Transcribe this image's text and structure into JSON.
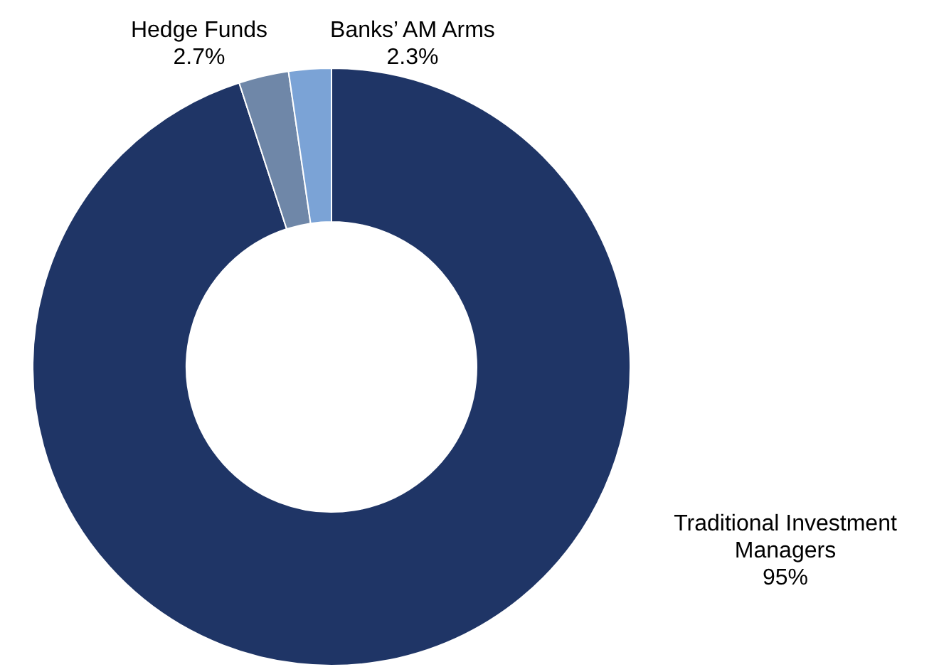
{
  "chart_data": {
    "type": "donut",
    "categories": [
      "Traditional Investment Managers",
      "Hedge Funds",
      "Banks’ AM Arms"
    ],
    "values": [
      95,
      2.7,
      2.3
    ],
    "colors": [
      "#1f3566",
      "#6f87a8",
      "#7ba3d6"
    ],
    "value_labels": [
      "95%",
      "2.7%",
      "2.3%"
    ]
  }
}
